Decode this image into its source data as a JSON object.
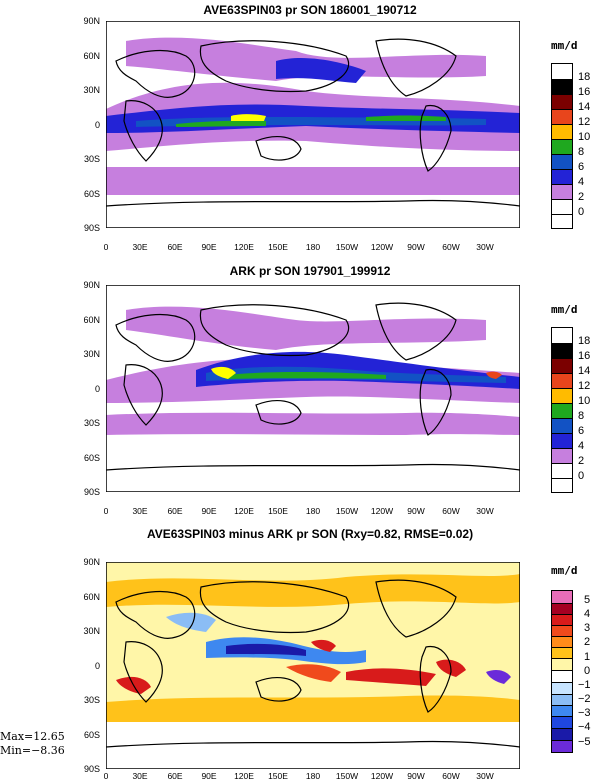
{
  "panels": [
    {
      "title": "AVE63SPIN03 pr SON 186001_190712",
      "units": "mm/d",
      "levels": [
        "18",
        "16",
        "14",
        "12",
        "10",
        "8",
        "6",
        "4",
        "2",
        "0"
      ],
      "colors": [
        "#ffffff",
        "#000000",
        "#7b0000",
        "#e8451c",
        "#ffbb00",
        "#ffff00",
        "#1fa81f",
        "#1252c4",
        "#2323d6",
        "#c67fde",
        "#ffffff"
      ]
    },
    {
      "title": "ARK pr SON 197901_199912",
      "units": "mm/d",
      "levels": [
        "18",
        "16",
        "14",
        "12",
        "10",
        "8",
        "6",
        "4",
        "2",
        "0"
      ],
      "colors": [
        "#ffffff",
        "#000000",
        "#7b0000",
        "#e8451c",
        "#ffbb00",
        "#ffff00",
        "#1fa81f",
        "#1252c4",
        "#2323d6",
        "#c67fde",
        "#ffffff"
      ]
    },
    {
      "title": "AVE63SPIN03 minus ARK pr SON (Rxy=0.82, RMSE=0.02)",
      "units": "mm/d",
      "levels": [
        "5",
        "4",
        "3",
        "2",
        "1",
        "0",
        "−1",
        "−2",
        "−3",
        "−4",
        "−5"
      ],
      "colors": [
        "#e86db8",
        "#a50022",
        "#d81b1b",
        "#f04a1c",
        "#ff8c1a",
        "#ffc21a",
        "#fff6a8",
        "#ffffff",
        "#c7e4ff",
        "#8bbdf5",
        "#3e88f0",
        "#1f47e0",
        "#1a1aa8",
        "#6b2bd9"
      ]
    }
  ],
  "lat_labels": [
    "90N",
    "60N",
    "30N",
    "0",
    "30S",
    "60S",
    "90S"
  ],
  "lon_labels": [
    "0",
    "30E",
    "60E",
    "90E",
    "120E",
    "150E",
    "180",
    "150W",
    "120W",
    "90W",
    "60W",
    "30W"
  ],
  "stats": {
    "max": "Max=12.65",
    "min": "Min=−8.36"
  }
}
